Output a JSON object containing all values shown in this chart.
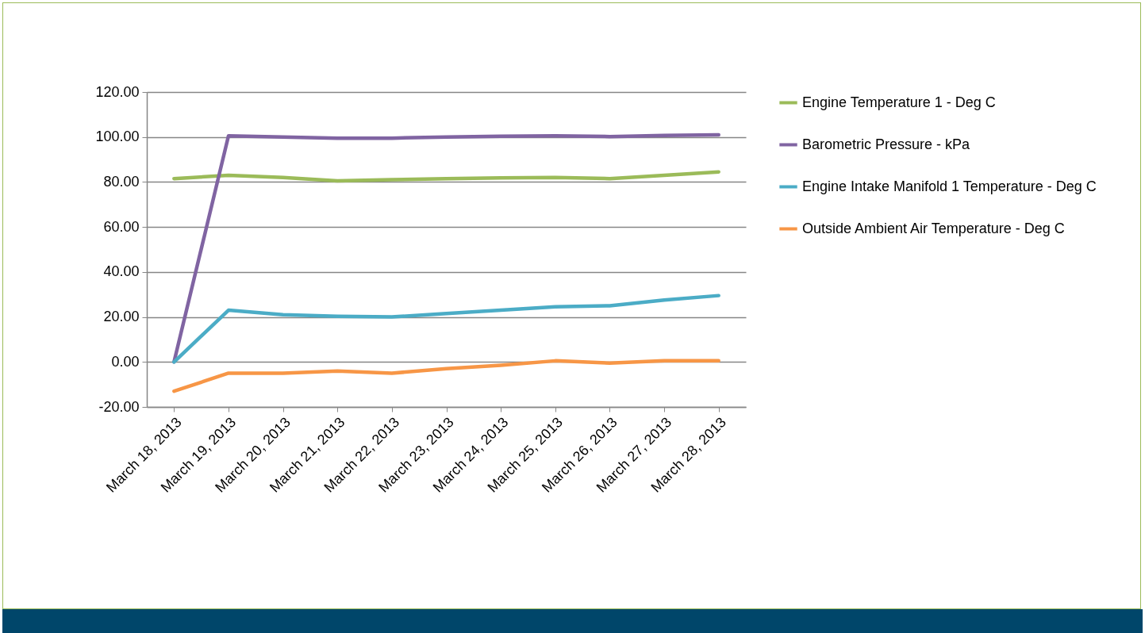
{
  "chart_data": {
    "type": "line",
    "categories": [
      "March 18, 2013",
      "March 19, 2013",
      "March 20, 2013",
      "March 21, 2013",
      "March 22, 2013",
      "March 23, 2013",
      "March 24, 2013",
      "March 25, 2013",
      "March 26, 2013",
      "March 27, 2013",
      "March 28, 2013"
    ],
    "series": [
      {
        "name": "Engine Temperature 1 - Deg C",
        "color": "#9bbb59",
        "values": [
          81.5,
          83,
          82,
          80.5,
          81,
          81.5,
          81.8,
          82,
          81.5,
          83,
          84.5
        ]
      },
      {
        "name": "Barometric Pressure - kPa",
        "color": "#8064a2",
        "values": [
          0,
          100.5,
          100,
          99.5,
          99.5,
          100,
          100.3,
          100.5,
          100.2,
          100.7,
          101
        ]
      },
      {
        "name": "Engine Intake Manifold 1 Temperature - Deg C",
        "color": "#4bacc6",
        "values": [
          0,
          23,
          21,
          20.3,
          20,
          21.5,
          23,
          24.5,
          25,
          27.5,
          29.5
        ]
      },
      {
        "name": "Outside Ambient Air Temperature - Deg C",
        "color": "#f79646",
        "values": [
          -13,
          -5,
          -5,
          -4,
          -5,
          -3,
          -1.5,
          0.5,
          -0.5,
          0.5,
          0.5
        ]
      }
    ],
    "ylim": [
      -20,
      120
    ],
    "yticks": [
      {
        "value": -20,
        "label": "-20.00"
      },
      {
        "value": 0,
        "label": "0.00"
      },
      {
        "value": 20,
        "label": "20.00"
      },
      {
        "value": 40,
        "label": "40.00"
      },
      {
        "value": 60,
        "label": "60.00"
      },
      {
        "value": 80,
        "label": "80.00"
      },
      {
        "value": 100,
        "label": "100.00"
      },
      {
        "value": 120,
        "label": "120.00"
      }
    ],
    "grid": "y",
    "legend": "right",
    "marker": "none",
    "line_style": "solid"
  }
}
